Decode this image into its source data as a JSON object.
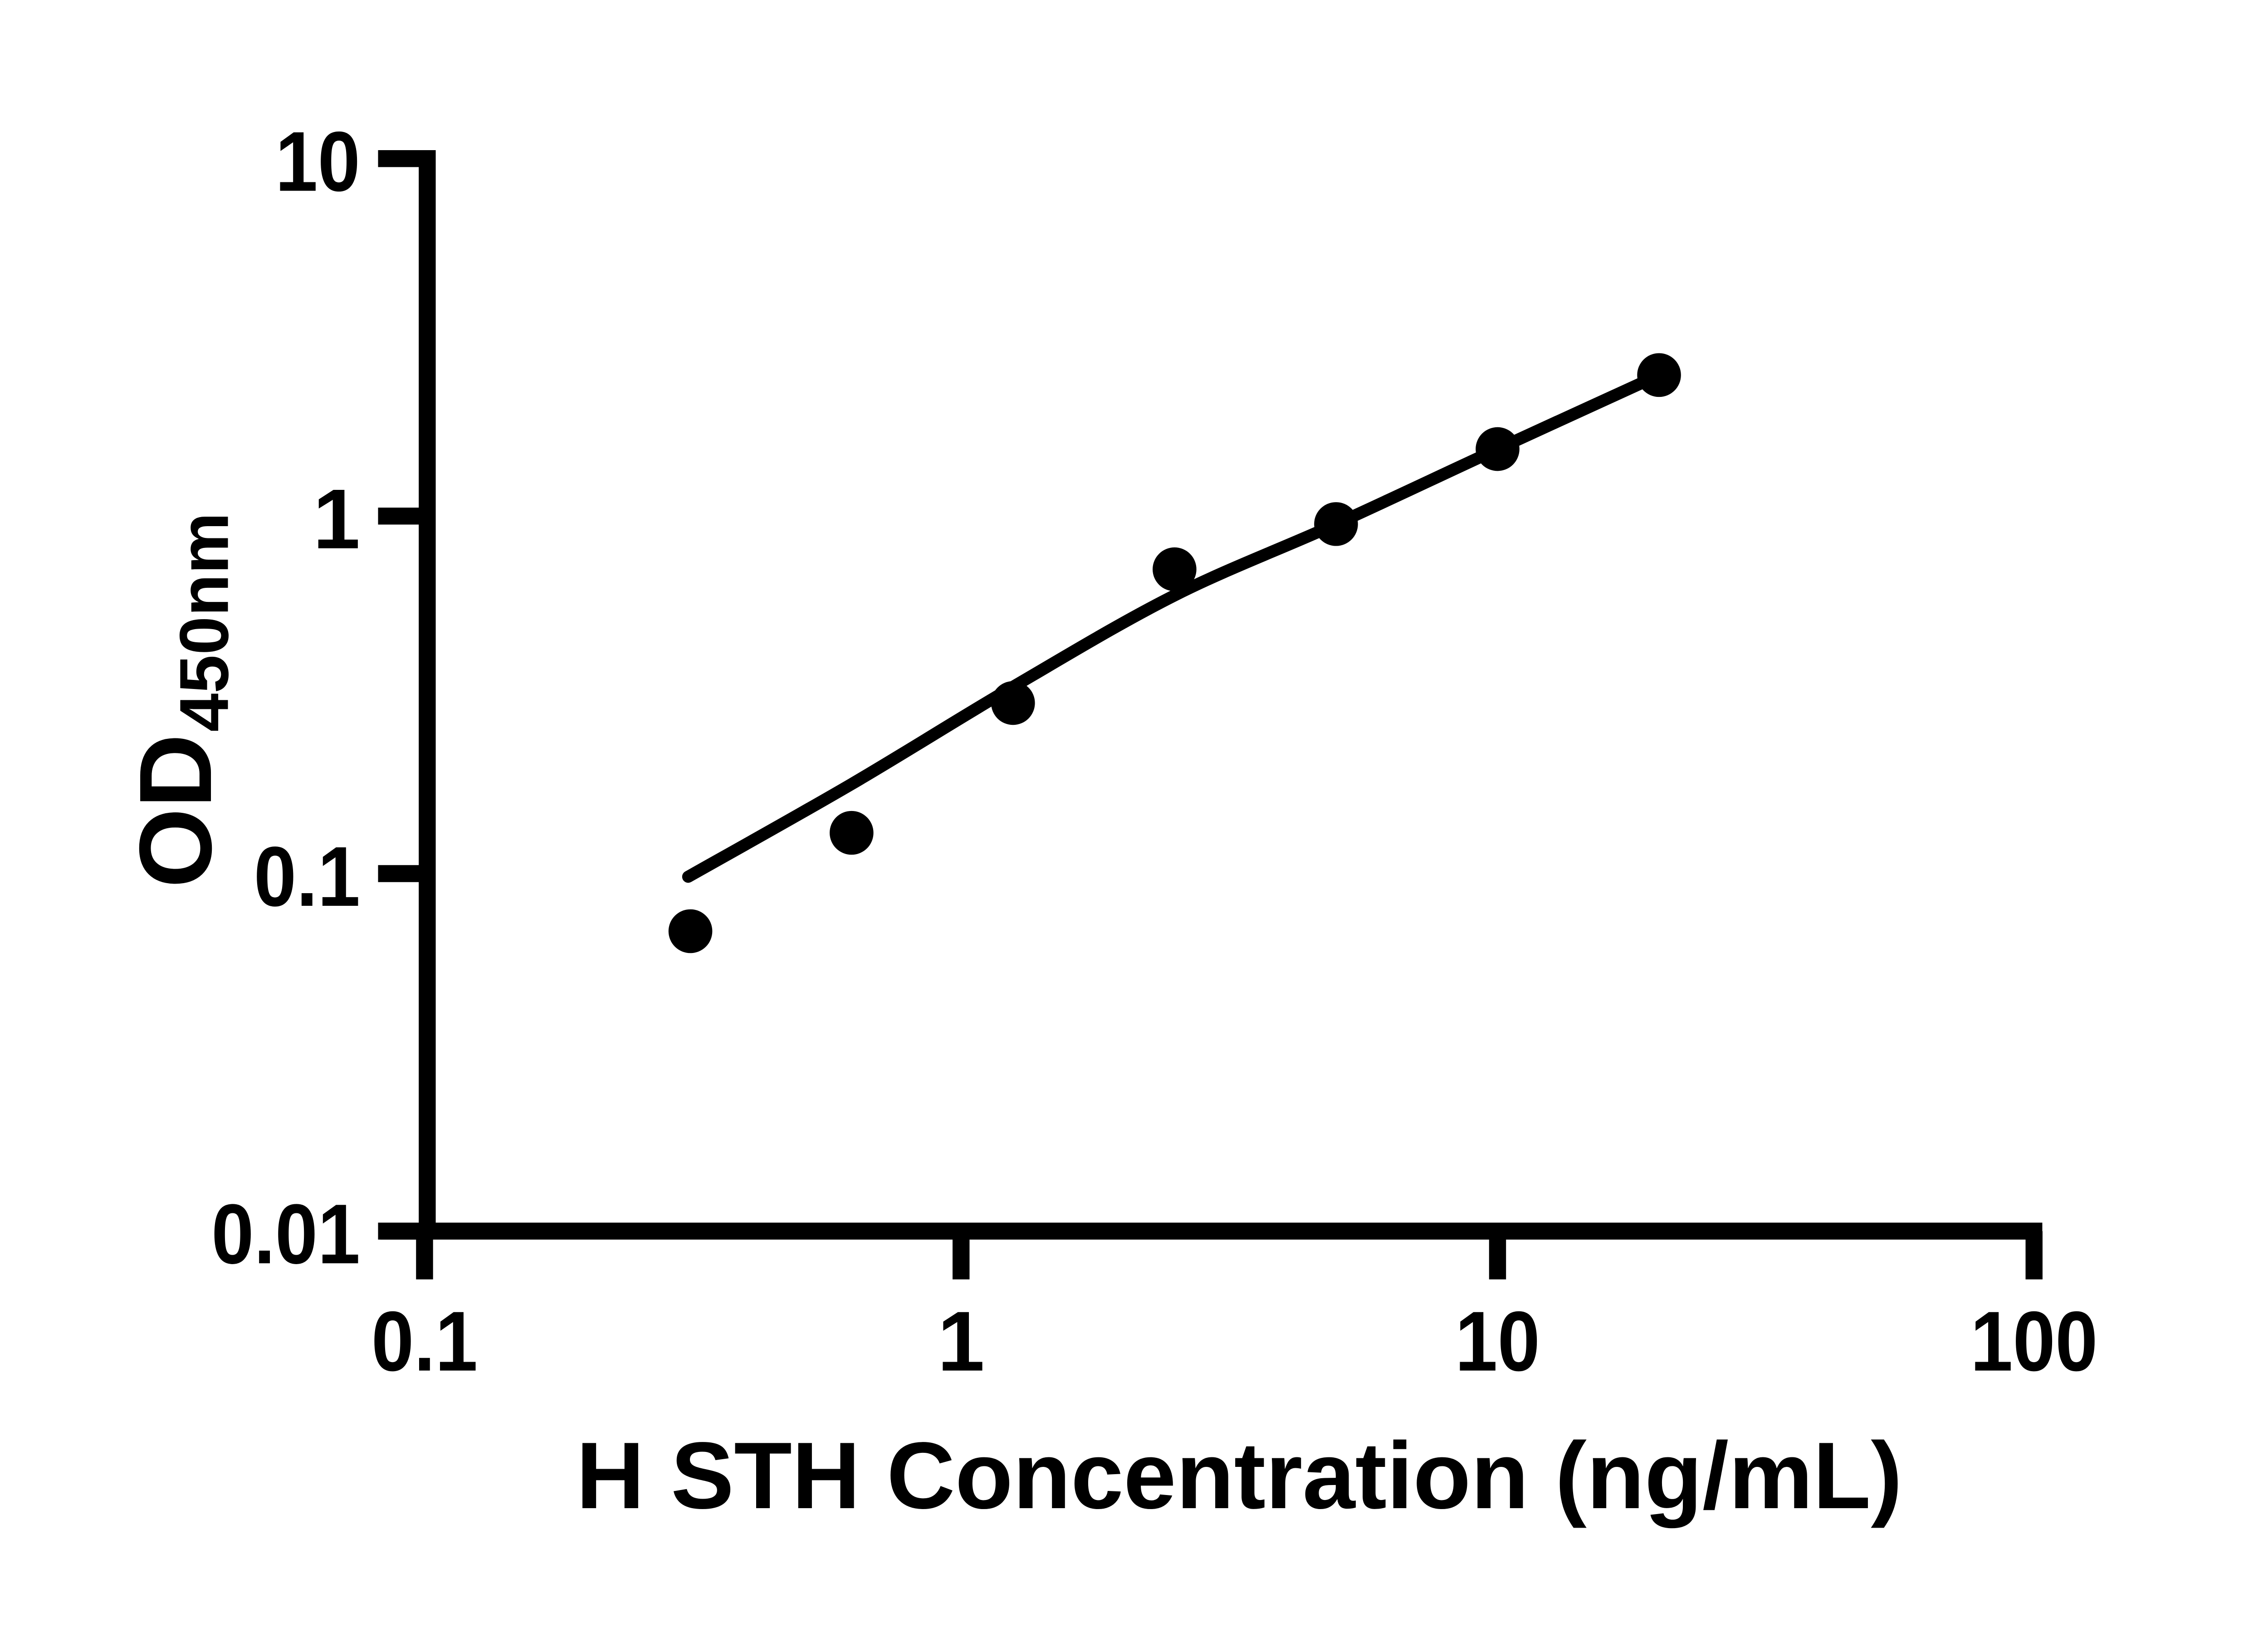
{
  "colors": {
    "foreground": "#000000",
    "background": "#ffffff"
  },
  "chart_data": {
    "type": "scatter",
    "title": "",
    "xlabel": "H STH Concentration (ng/mL)",
    "ylabel": "OD",
    "ylabel_subscript": "450nm",
    "x_axis": {
      "scale": "log",
      "range": [
        0.1,
        100
      ],
      "ticks": [
        {
          "value": 0.1,
          "label": "0.1"
        },
        {
          "value": 1,
          "label": "1"
        },
        {
          "value": 10,
          "label": "10"
        },
        {
          "value": 100,
          "label": "100"
        }
      ]
    },
    "y_axis": {
      "scale": "log",
      "range": [
        0.01,
        10
      ],
      "ticks": [
        {
          "value": 10,
          "label": "10"
        },
        {
          "value": 1,
          "label": "1"
        },
        {
          "value": 0.1,
          "label": "0.1"
        },
        {
          "value": 0.01,
          "label": "0.01"
        }
      ]
    },
    "series": [
      {
        "name": "standard-curve-points",
        "marker": "filled-circle",
        "color": "#000000",
        "points": [
          {
            "x": 0.313,
            "y": 0.069
          },
          {
            "x": 0.625,
            "y": 0.13
          },
          {
            "x": 1.25,
            "y": 0.3
          },
          {
            "x": 2.5,
            "y": 0.71
          },
          {
            "x": 5,
            "y": 0.95
          },
          {
            "x": 10,
            "y": 1.54
          },
          {
            "x": 20,
            "y": 2.48
          }
        ]
      }
    ],
    "fit_curve": {
      "name": "fitted-standard-curve",
      "color": "#000000",
      "points": [
        {
          "x": 0.31,
          "y": 0.098
        },
        {
          "x": 0.625,
          "y": 0.178
        },
        {
          "x": 1.25,
          "y": 0.333
        },
        {
          "x": 2.5,
          "y": 0.6
        },
        {
          "x": 5,
          "y": 0.95
        },
        {
          "x": 10,
          "y": 1.54
        },
        {
          "x": 20,
          "y": 2.48
        }
      ]
    },
    "legend": "none",
    "grid": "off"
  }
}
